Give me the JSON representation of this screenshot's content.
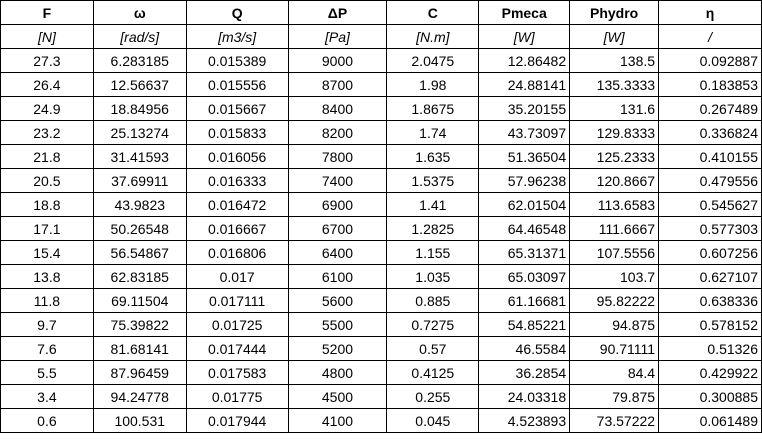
{
  "headers": [
    "F",
    "ω",
    "Q",
    "ΔP",
    "C",
    "Pmeca",
    "Phydro",
    "η"
  ],
  "units": [
    "[N]",
    "[rad/s]",
    "[m3/s]",
    "[Pa]",
    "[N.m]",
    "[W]",
    "[W]",
    "/"
  ],
  "rows": [
    [
      "27.3",
      "6.283185",
      "0.015389",
      "9000",
      "2.0475",
      "12.86482",
      "138.5",
      "0.092887"
    ],
    [
      "26.4",
      "12.56637",
      "0.015556",
      "8700",
      "1.98",
      "24.88141",
      "135.3333",
      "0.183853"
    ],
    [
      "24.9",
      "18.84956",
      "0.015667",
      "8400",
      "1.8675",
      "35.20155",
      "131.6",
      "0.267489"
    ],
    [
      "23.2",
      "25.13274",
      "0.015833",
      "8200",
      "1.74",
      "43.73097",
      "129.8333",
      "0.336824"
    ],
    [
      "21.8",
      "31.41593",
      "0.016056",
      "7800",
      "1.635",
      "51.36504",
      "125.2333",
      "0.410155"
    ],
    [
      "20.5",
      "37.69911",
      "0.016333",
      "7400",
      "1.5375",
      "57.96238",
      "120.8667",
      "0.479556"
    ],
    [
      "18.8",
      "43.9823",
      "0.016472",
      "6900",
      "1.41",
      "62.01504",
      "113.6583",
      "0.545627"
    ],
    [
      "17.1",
      "50.26548",
      "0.016667",
      "6700",
      "1.2825",
      "64.46548",
      "111.6667",
      "0.577303"
    ],
    [
      "15.4",
      "56.54867",
      "0.016806",
      "6400",
      "1.155",
      "65.31371",
      "107.5556",
      "0.607256"
    ],
    [
      "13.8",
      "62.83185",
      "0.017",
      "6100",
      "1.035",
      "65.03097",
      "103.7",
      "0.627107"
    ],
    [
      "11.8",
      "69.11504",
      "0.017111",
      "5600",
      "0.885",
      "61.16681",
      "95.82222",
      "0.638336"
    ],
    [
      "9.7",
      "75.39822",
      "0.01725",
      "5500",
      "0.7275",
      "54.85221",
      "94.875",
      "0.578152"
    ],
    [
      "7.6",
      "81.68141",
      "0.017444",
      "5200",
      "0.57",
      "46.5584",
      "90.71111",
      "0.51326"
    ],
    [
      "5.5",
      "87.96459",
      "0.017583",
      "4800",
      "0.4125",
      "36.2854",
      "84.4",
      "0.429922"
    ],
    [
      "3.4",
      "94.24778",
      "0.01775",
      "4500",
      "0.255",
      "24.03318",
      "79.875",
      "0.300885"
    ],
    [
      "0.6",
      "100.531",
      "0.017944",
      "4100",
      "0.045",
      "4.523893",
      "73.57222",
      "0.061489"
    ]
  ]
}
